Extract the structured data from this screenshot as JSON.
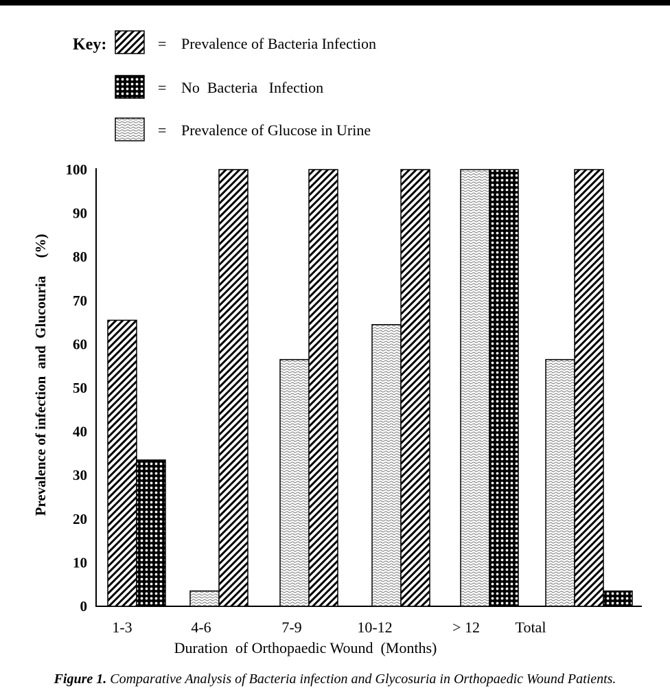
{
  "key": {
    "label": "Key:",
    "equals": "=",
    "items": [
      {
        "pattern": "hatch",
        "text": "Prevalence of Bacteria Infection"
      },
      {
        "pattern": "dots",
        "text": "No  Bacteria   Infection"
      },
      {
        "pattern": "wave",
        "text": "Prevalence of Glucose in Urine"
      }
    ]
  },
  "caption": {
    "prefix": "Figure 1.",
    "text": " Comparative Analysis of Bacteria infection and Glycosuria in Orthopaedic Wound Patients."
  },
  "chart_data": {
    "type": "bar",
    "xlabel": "Duration  of Orthopaedic Wound  (Months)",
    "ylabel": "Prevalence of infection  and  Glucouria     (%)",
    "ylim": [
      0,
      100
    ],
    "yticks": [
      "0",
      "10",
      "20",
      "30",
      "40",
      "50",
      "60",
      "70",
      "80",
      "90",
      "100"
    ],
    "categories": [
      "1-3",
      "4-6",
      "7-9",
      "10-12",
      "> 12",
      "Total"
    ],
    "grid": false,
    "bars": [
      {
        "group": 0,
        "pattern": "hatch",
        "value": 65.5
      },
      {
        "group": 0,
        "pattern": "dots",
        "value": 33.5
      },
      {
        "group": 1,
        "pattern": "wave",
        "value": 3.5
      },
      {
        "group": 1,
        "pattern": "hatch",
        "value": 100
      },
      {
        "group": 2,
        "pattern": "wave",
        "value": 56.5
      },
      {
        "group": 2,
        "pattern": "hatch",
        "value": 100
      },
      {
        "group": 3,
        "pattern": "wave",
        "value": 64.5
      },
      {
        "group": 3,
        "pattern": "hatch",
        "value": 100
      },
      {
        "group": 4,
        "pattern": "wave",
        "value": 100
      },
      {
        "group": 4,
        "pattern": "dots",
        "value": 100
      },
      {
        "group": 5,
        "pattern": "wave",
        "value": 56.5
      },
      {
        "group": 5,
        "pattern": "hatch",
        "value": 100
      },
      {
        "group": 5,
        "pattern": "dots",
        "value": 3.5
      }
    ]
  }
}
